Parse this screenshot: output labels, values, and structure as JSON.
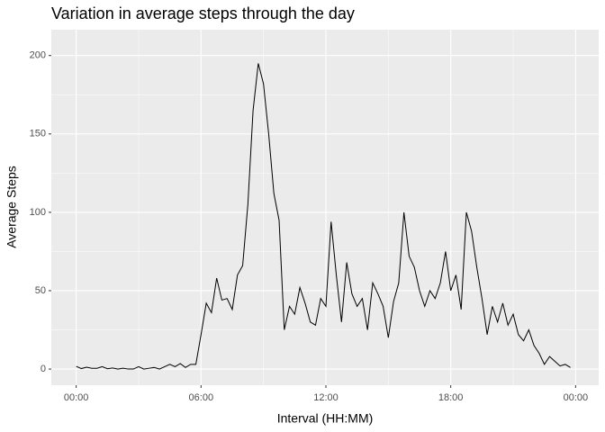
{
  "chart_data": {
    "type": "line",
    "title": "Variation in average steps through the day",
    "x_label": "Interval (HH:MM)",
    "y_label": "Average Steps",
    "x": [
      0,
      0.25,
      0.5,
      0.75,
      1,
      1.25,
      1.5,
      1.75,
      2,
      2.25,
      2.5,
      2.75,
      3,
      3.25,
      3.5,
      3.75,
      4,
      4.25,
      4.5,
      4.75,
      5,
      5.25,
      5.5,
      5.75,
      6,
      6.25,
      6.5,
      6.75,
      7,
      7.25,
      7.5,
      7.75,
      8,
      8.25,
      8.5,
      8.75,
      9,
      9.25,
      9.5,
      9.75,
      10,
      10.25,
      10.5,
      10.75,
      11,
      11.25,
      11.5,
      11.75,
      12,
      12.25,
      12.5,
      12.75,
      13,
      13.25,
      13.5,
      13.75,
      14,
      14.25,
      14.5,
      14.75,
      15,
      15.25,
      15.5,
      15.75,
      16,
      16.25,
      16.5,
      16.75,
      17,
      17.25,
      17.5,
      17.75,
      18,
      18.25,
      18.5,
      18.75,
      19,
      19.25,
      19.5,
      19.75,
      20,
      20.25,
      20.5,
      20.75,
      21,
      21.25,
      21.5,
      21.75,
      22,
      22.25,
      22.5,
      22.75,
      23,
      23.25,
      23.5,
      23.75
    ],
    "series": [
      {
        "name": "Average Steps",
        "color": "#000000",
        "values": [
          1.7,
          0.3,
          1.2,
          0.5,
          0.5,
          1.5,
          0.2,
          0.7,
          0,
          0.5,
          0,
          0,
          1.5,
          0,
          0.5,
          1,
          0,
          1.5,
          3,
          1.5,
          3.5,
          1,
          3,
          3,
          22,
          42,
          36,
          58,
          44,
          45,
          38,
          60,
          66,
          105,
          165,
          195,
          182,
          150,
          112,
          95,
          25,
          40,
          35,
          52,
          42,
          30,
          28,
          45,
          40,
          94,
          60,
          30,
          68,
          48,
          40,
          45,
          25,
          55,
          48,
          40,
          20,
          43,
          55,
          100,
          72,
          65,
          50,
          40,
          50,
          45,
          55,
          75,
          50,
          60,
          38,
          100,
          88,
          65,
          45,
          22,
          40,
          30,
          42,
          28,
          35,
          22,
          18,
          25,
          15,
          10,
          3,
          8,
          5,
          2,
          3,
          1
        ]
      }
    ],
    "xlim": [
      -1.196,
      25.11
    ],
    "ylim": [
      -10.3,
      216.5
    ],
    "xticks": [
      {
        "value": 0,
        "label": "00:00"
      },
      {
        "value": 6,
        "label": "06:00"
      },
      {
        "value": 12,
        "label": "12:00"
      },
      {
        "value": 18,
        "label": "18:00"
      },
      {
        "value": 24,
        "label": "00:00"
      }
    ],
    "yticks": [
      0,
      50,
      100,
      150,
      200
    ],
    "grid": true
  }
}
